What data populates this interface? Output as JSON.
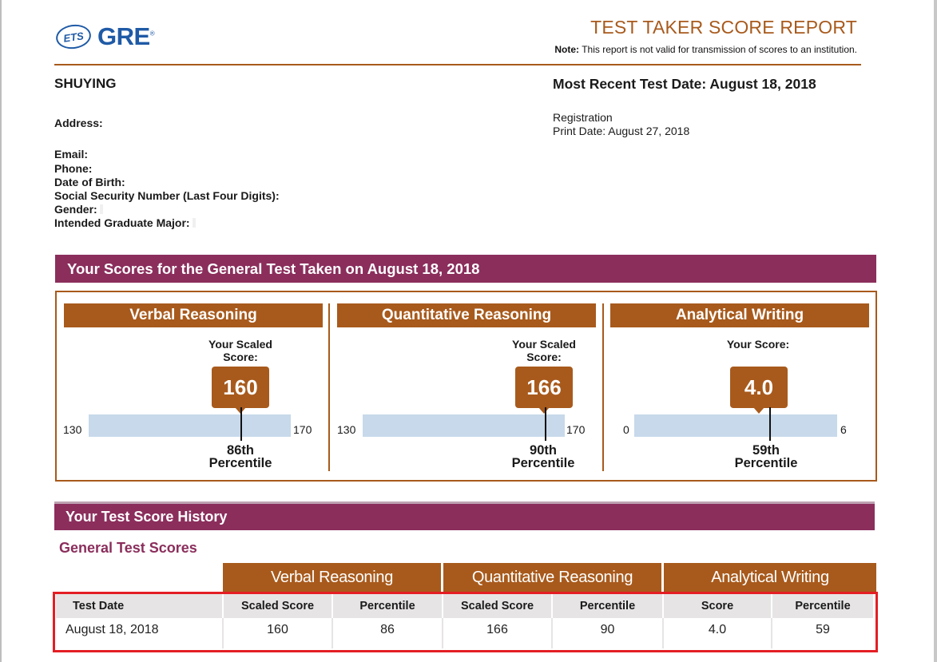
{
  "header": {
    "logo_ets": "ETS",
    "logo_gre": "GRE",
    "logo_reg": "®",
    "title": "TEST TAKER SCORE REPORT",
    "note_label": "Note:",
    "note_text": "This report is not valid for transmission of scores to an institution."
  },
  "candidate": {
    "name": "SHUYING",
    "test_date_heading": "Most Recent Test Date: August 18, 2018",
    "registration": "Registration",
    "print_date": "Print Date: August 27, 2018",
    "labels": {
      "address": "Address:",
      "email": "Email:",
      "phone": "Phone:",
      "dob": "Date of Birth:",
      "ssn": "Social Security Number (Last Four Digits):",
      "gender": "Gender:",
      "major": "Intended Graduate Major:"
    }
  },
  "scores": {
    "banner": "Your Scores for the General Test Taken on August 18, 2018",
    "sections": [
      {
        "title": "Verbal Reasoning",
        "score_label": "Your Scaled Score:",
        "score": "160",
        "min": "130",
        "max": "170",
        "percentile": "86th",
        "percentile_word": "Percentile",
        "score_value": 160,
        "min_value": 130,
        "max_value": 170
      },
      {
        "title": "Quantitative Reasoning",
        "score_label": "Your Scaled Score:",
        "score": "166",
        "min": "130",
        "max": "170",
        "percentile": "90th",
        "percentile_word": "Percentile",
        "score_value": 166,
        "min_value": 130,
        "max_value": 170
      },
      {
        "title": "Analytical Writing",
        "score_label": "Your Score:",
        "score": "4.0",
        "min": "0",
        "max": "6",
        "percentile": "59th",
        "percentile_word": "Percentile",
        "score_value": 4.0,
        "min_value": 0,
        "max_value": 6
      }
    ]
  },
  "history": {
    "banner": "Your Test Score History",
    "section_title": "General Test Scores",
    "group_headers": [
      "Verbal Reasoning",
      "Quantitative Reasoning",
      "Analytical Writing"
    ],
    "columns": [
      "Test Date",
      "Scaled Score",
      "Percentile",
      "Scaled Score",
      "Percentile",
      "Score",
      "Percentile"
    ],
    "rows": [
      [
        "August 18, 2018",
        "160",
        "86",
        "166",
        "90",
        "4.0",
        "59"
      ]
    ]
  },
  "colors": {
    "accent_brown": "#a85a1c",
    "banner_plum": "#8b2e5c",
    "bar_blue": "#c7d9ea",
    "logo_blue": "#1f5aa6",
    "highlight_red": "#e31e24"
  }
}
